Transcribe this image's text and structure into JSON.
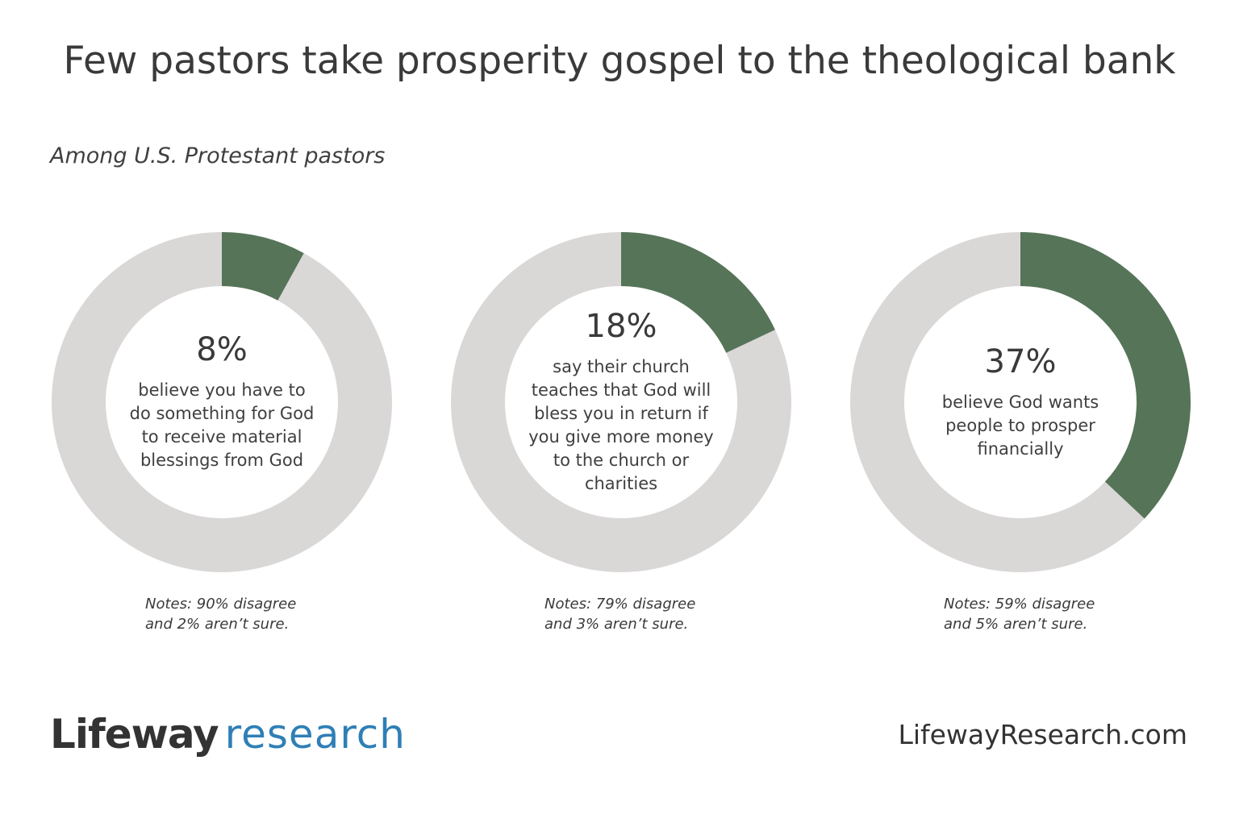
{
  "title": "Few pastors take prosperity gospel to the theological bank",
  "subtitle": "Among U.S. Protestant pastors",
  "colors": {
    "highlight": "#567458",
    "remainder": "#dad7d7"
  },
  "chart_data": [
    {
      "type": "pie",
      "value": 8,
      "value_label": "8%",
      "description": "believe you have to do something for God to receive material blessings from God",
      "note_line1": "Notes: 90% disagree",
      "note_line2": "and 2% aren’t sure."
    },
    {
      "type": "pie",
      "value": 18,
      "value_label": "18%",
      "description": "say their church teaches that God will bless you in return if you give more money to the church or charities",
      "note_line1": "Notes: 79% disagree",
      "note_line2": "and 3% aren’t sure."
    },
    {
      "type": "pie",
      "value": 37,
      "value_label": "37%",
      "description": "believe God wants people to prosper financially",
      "note_line1": "Notes: 59% disagree",
      "note_line2": "and 5% aren’t sure."
    }
  ],
  "footer": {
    "logo_brand": "Lifeway",
    "logo_research": "research",
    "website": "LifewayResearch.com"
  }
}
